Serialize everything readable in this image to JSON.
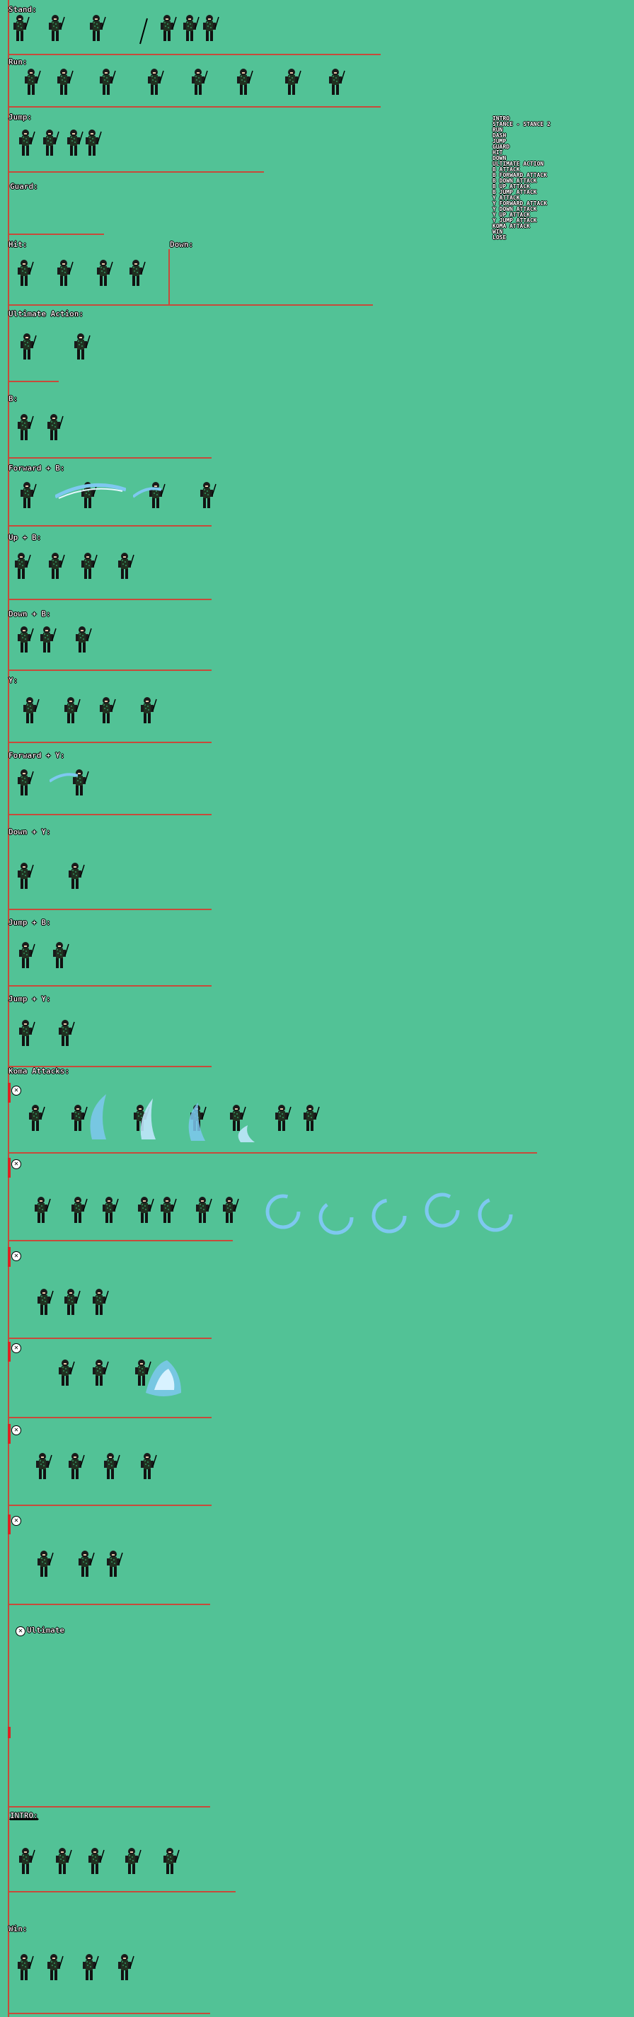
{
  "sections": [
    {
      "key": "stand",
      "label": "Stand:"
    },
    {
      "key": "run",
      "label": "Run:"
    },
    {
      "key": "jump",
      "label": "Jump:"
    },
    {
      "key": "guard",
      "label": "Guard:"
    },
    {
      "key": "hit",
      "label": "Hit:"
    },
    {
      "key": "down",
      "label": "Down:"
    },
    {
      "key": "ultimate_action",
      "label": "Ultimate Action:"
    },
    {
      "key": "b",
      "label": "B:"
    },
    {
      "key": "forward_b",
      "label": "Forward + B:"
    },
    {
      "key": "up_b",
      "label": "Up + B:"
    },
    {
      "key": "down_b",
      "label": "Down + B:"
    },
    {
      "key": "y",
      "label": "Y:"
    },
    {
      "key": "forward_y",
      "label": "Forward + Y:"
    },
    {
      "key": "down_y",
      "label": "Down + Y:"
    },
    {
      "key": "jump_b",
      "label": "Jump + B:"
    },
    {
      "key": "jump_y",
      "label": "Jump + Y:"
    },
    {
      "key": "koma",
      "label": "Koma Attacks:"
    },
    {
      "key": "ultimate",
      "label": "Ultimate"
    },
    {
      "key": "intro",
      "label": "INTRO:"
    },
    {
      "key": "win",
      "label": "Win:"
    }
  ],
  "legend": [
    "INTRO",
    "STANCE - STANCE 2",
    "RUN",
    "DASH",
    "JUMP",
    "GUARD",
    "HIT",
    "DOWN",
    "ULTIMATE ACTION",
    "B ATTACK",
    "B FORWARD ATTACK",
    "B DOWN ATTACK",
    "B UP ATTACK",
    "B JUMP ATTACK",
    "Y ATTACK",
    "Y FORWARD ATTACK",
    "Y DOWN ATTACK",
    "Y UP ATTACK",
    "Y JUMP ATTACK",
    "KOMA ATTACK",
    "WIN",
    "LOSE"
  ],
  "colors": {
    "background": "#52c296",
    "divider": "#c84a3a",
    "water": "#7ec8f0"
  },
  "icons": {
    "koma_badge": "x-circle-icon"
  }
}
